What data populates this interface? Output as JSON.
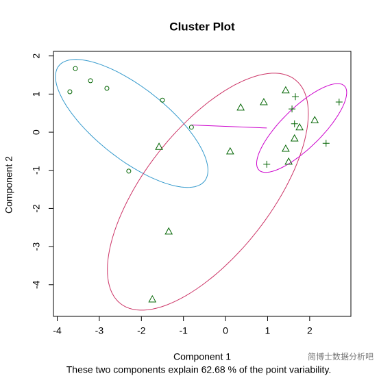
{
  "chart_data": {
    "type": "scatter",
    "title": "Cluster Plot",
    "x_label": "Component 1",
    "y_label": "Component 2",
    "footnote": "These two components explain 62.68 % of the point variability.",
    "watermark": "简博士数据分析吧",
    "xlim": [
      -4.09,
      2.98
    ],
    "ylim": [
      -4.83,
      2.12
    ],
    "xticks": [
      -4,
      -3,
      -2,
      -1,
      0,
      1,
      2
    ],
    "yticks": [
      -4,
      -3,
      -2,
      -1,
      0,
      1,
      2
    ],
    "series": [
      {
        "marker": "circle",
        "color": "#006400",
        "x": [
          -3.57,
          -3.21,
          -2.82,
          -3.7,
          -1.5,
          -0.81,
          -2.3
        ],
        "y": [
          1.67,
          1.35,
          1.15,
          1.06,
          0.84,
          0.13,
          -1.02
        ]
      },
      {
        "marker": "triangle",
        "color": "#006400",
        "x": [
          1.43,
          0.36,
          0.91,
          -1.58,
          0.11,
          -1.35,
          -1.74,
          1.43,
          1.5,
          1.64,
          1.76,
          2.12
        ],
        "y": [
          1.1,
          0.65,
          0.79,
          -0.38,
          -0.5,
          -2.6,
          -4.38,
          -0.43,
          -0.77,
          -0.16,
          0.13,
          0.32
        ]
      },
      {
        "marker": "plus",
        "color": "#006400",
        "x": [
          1.66,
          1.58,
          1.64,
          2.7,
          2.39,
          0.98
        ],
        "y": [
          0.93,
          0.61,
          0.22,
          0.79,
          -0.29,
          -0.84
        ]
      }
    ],
    "ellipses": [
      {
        "color": "#3399cc",
        "cx": -2.23,
        "cy": 0.23,
        "rx": 2.3,
        "ry": 0.9,
        "angle": -42
      },
      {
        "color": "#cc3366",
        "cx": -0.42,
        "cy": -1.56,
        "rx": 3.6,
        "ry": 1.55,
        "angle": 56
      },
      {
        "color": "#cc00cc",
        "cx": 1.81,
        "cy": 0.11,
        "rx": 1.5,
        "ry": 0.5,
        "angle": 48
      }
    ],
    "segments": [
      {
        "color": "#cc00cc",
        "x": [
          -0.82,
          0.98
        ],
        "y": [
          0.19,
          0.11
        ]
      }
    ]
  }
}
